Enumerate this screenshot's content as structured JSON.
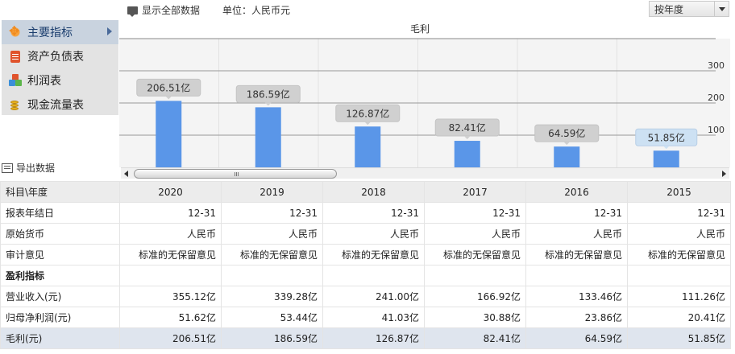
{
  "toolbar": {
    "show_all_label": "显示全部数据",
    "unit_label": "单位：人民币元",
    "period_select_value": "按年度"
  },
  "sidebar": {
    "items": [
      {
        "label": "主要指标",
        "icon": "star-icon",
        "active": true
      },
      {
        "label": "资产负债表",
        "icon": "document-icon",
        "active": false
      },
      {
        "label": "利润表",
        "icon": "cubes-icon",
        "active": false
      },
      {
        "label": "现金流量表",
        "icon": "coins-icon",
        "active": false
      }
    ],
    "export_label": "导出数据"
  },
  "chart_data": {
    "type": "bar",
    "title": "毛利",
    "categories": [
      "2020",
      "2019",
      "2018",
      "2017",
      "2016",
      "2015"
    ],
    "values": [
      206.51,
      186.59,
      126.87,
      82.41,
      64.59,
      51.85
    ],
    "value_labels": [
      "206.51亿",
      "186.59亿",
      "126.87亿",
      "82.41亿",
      "64.59亿",
      "51.85亿"
    ],
    "ytick_labels": [
      "300",
      "200",
      "100"
    ],
    "yticks": [
      300,
      200,
      100
    ],
    "ylim": [
      0,
      400
    ],
    "grid": true,
    "bar_color": "#5a96e8",
    "label_bg": "#d0d0d0",
    "label_bg_last": "#cde1f3"
  },
  "table": {
    "header_first": "科目\\年度",
    "years": [
      "2020",
      "2019",
      "2018",
      "2017",
      "2016",
      "2015"
    ],
    "rows": [
      {
        "label": "报表年结日",
        "values": [
          "12-31",
          "12-31",
          "12-31",
          "12-31",
          "12-31",
          "12-31"
        ],
        "kind": "normal"
      },
      {
        "label": "原始货币",
        "values": [
          "人民币",
          "人民币",
          "人民币",
          "人民币",
          "人民币",
          "人民币"
        ],
        "kind": "normal"
      },
      {
        "label": "审计意见",
        "values": [
          "标准的无保留意见",
          "标准的无保留意见",
          "标准的无保留意见",
          "标准的无保留意见",
          "标准的无保留意见",
          "标准的无保留意见"
        ],
        "kind": "normal"
      },
      {
        "label": "盈利指标",
        "values": [
          "",
          "",
          "",
          "",
          "",
          ""
        ],
        "kind": "section"
      },
      {
        "label": "营业收入(元)",
        "values": [
          "355.12亿",
          "339.28亿",
          "241.00亿",
          "166.92亿",
          "133.46亿",
          "111.26亿"
        ],
        "kind": "normal"
      },
      {
        "label": "归母净利润(元)",
        "values": [
          "51.62亿",
          "53.44亿",
          "41.03亿",
          "30.88亿",
          "23.86亿",
          "20.41亿"
        ],
        "kind": "normal"
      },
      {
        "label": "毛利(元)",
        "values": [
          "206.51亿",
          "186.59亿",
          "126.87亿",
          "82.41亿",
          "64.59亿",
          "51.85亿"
        ],
        "kind": "highlight"
      }
    ]
  }
}
